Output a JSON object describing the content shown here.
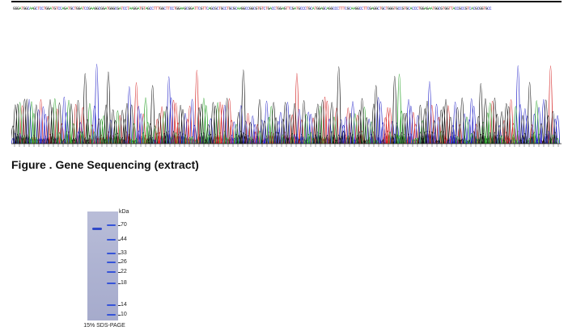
{
  "sequencing": {
    "base_colors": {
      "A": "#1a9a1a",
      "C": "#2323c8",
      "G": "#111111",
      "T": "#d42020"
    },
    "sequence_text": "GGGATGGCAAGCTCCTGGATGTCCAGATGCTGGATCCGAAGGCGGATGGGCGATCCTAAGGATGTAGCCTTTGGCTTCCTGGAAGCGGATTCGTTCAGCGCTGCCTGCGCAAGGCCGGCGTGTCTGACCTGGAGTTCGATGCCCTGCATGGAGCAGGCCCTTTCGCAAGGCCTTCGAGGCTGCTGGGTGCCGTGCACCCTGGAGAATGGCGTGGTTACCGCCGTCACGCGGTGCC",
    "figure_caption": "Figure . Gene Sequencing (extract)"
  },
  "gel": {
    "unit_label": "kDa",
    "markers": [
      "70",
      "44",
      "33",
      "26",
      "22",
      "18",
      "14",
      "10"
    ],
    "caption": "15% SDS-PAGE",
    "band_color": "#2f48c8",
    "gel_color": "#b3b8d6"
  }
}
